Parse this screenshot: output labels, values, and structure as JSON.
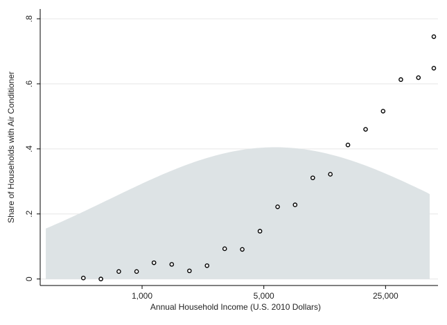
{
  "chart_data": {
    "type": "scatter",
    "title": "",
    "xlabel": "Annual Household Income (U.S. 2010 Dollars)",
    "ylabel": "Share of Households with Air Conditioner",
    "x_scale": "log",
    "xlim": [
      260,
      50000
    ],
    "ylim": [
      -0.02,
      0.83
    ],
    "x_ticks": [
      {
        "value": 1000,
        "label": "1,000"
      },
      {
        "value": 5000,
        "label": "5,000"
      },
      {
        "value": 25000,
        "label": "25,000"
      }
    ],
    "y_ticks": [
      {
        "value": 0,
        "label": "0"
      },
      {
        "value": 0.2,
        "label": ".2"
      },
      {
        "value": 0.4,
        "label": ".4"
      },
      {
        "value": 0.6,
        "label": ".6"
      },
      {
        "value": 0.8,
        "label": ".8"
      }
    ],
    "grid": true,
    "series": [
      {
        "points": [
          {
            "x": 460,
            "y": 0.003
          },
          {
            "x": 580,
            "y": 0.0
          },
          {
            "x": 735,
            "y": 0.023
          },
          {
            "x": 930,
            "y": 0.023
          },
          {
            "x": 1170,
            "y": 0.05
          },
          {
            "x": 1480,
            "y": 0.045
          },
          {
            "x": 1870,
            "y": 0.025
          },
          {
            "x": 2360,
            "y": 0.041
          },
          {
            "x": 2980,
            "y": 0.093
          },
          {
            "x": 3760,
            "y": 0.091
          },
          {
            "x": 4750,
            "y": 0.147
          },
          {
            "x": 6000,
            "y": 0.222
          },
          {
            "x": 7560,
            "y": 0.228
          },
          {
            "x": 9550,
            "y": 0.311
          },
          {
            "x": 12050,
            "y": 0.322
          },
          {
            "x": 15200,
            "y": 0.412
          },
          {
            "x": 19200,
            "y": 0.46
          },
          {
            "x": 24200,
            "y": 0.516
          },
          {
            "x": 30600,
            "y": 0.613
          },
          {
            "x": 38600,
            "y": 0.619
          },
          {
            "x": 48700,
            "y": 0.648
          },
          {
            "x": 61500,
            "y": 0.745
          }
        ]
      }
    ],
    "density": {
      "peak_x": 5800,
      "peak_y": 0.405,
      "log_sd": 0.95,
      "baseline_y": 0.0,
      "range": [
        280,
        76000
      ],
      "color": "#dde3e5"
    },
    "colors": {
      "marker_stroke": "#000000",
      "grid": "#e6e6e6",
      "axis": "#000000",
      "text": "#222222"
    }
  }
}
